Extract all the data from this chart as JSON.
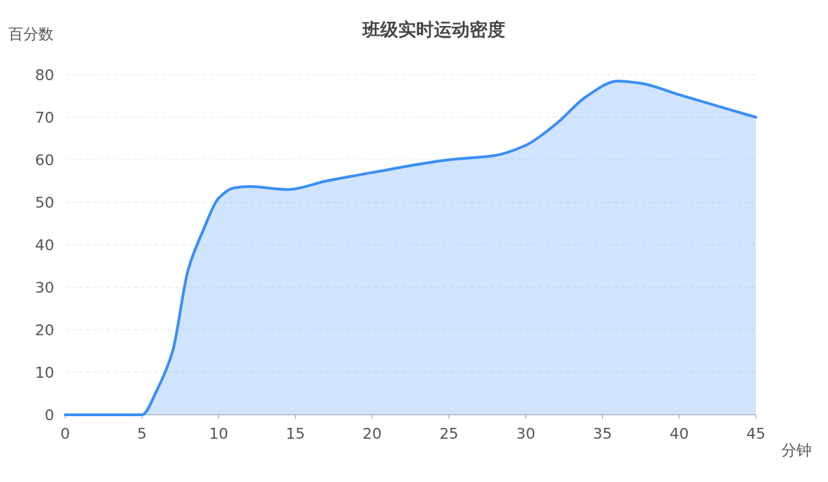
{
  "chart_data": {
    "type": "area",
    "title": "班级实时运动密度",
    "xlabel": "分钟",
    "ylabel": "百分数",
    "x": [
      0,
      5,
      6,
      7,
      8,
      9,
      10,
      11,
      12,
      14.5,
      17,
      20,
      25,
      28,
      30,
      32,
      34,
      36,
      37.5,
      40,
      45
    ],
    "series": [
      {
        "color": "#3a8ef6",
        "values": [
          0,
          0,
          6,
          15,
          34,
          43.5,
          51,
          53.4,
          53.7,
          53,
          55,
          57,
          60,
          61,
          63.4,
          68.5,
          75,
          78.5,
          78,
          75.3,
          70
        ]
      }
    ],
    "xlim": [
      0,
      45
    ],
    "xticks": [
      0,
      5,
      10,
      15,
      20,
      25,
      30,
      35,
      40,
      45
    ],
    "ylim": [
      0,
      80
    ],
    "yticks": [
      0,
      10,
      20,
      30,
      40,
      50,
      60,
      70,
      80
    ],
    "grid": "y",
    "marker": "none",
    "line_style": "solid"
  }
}
